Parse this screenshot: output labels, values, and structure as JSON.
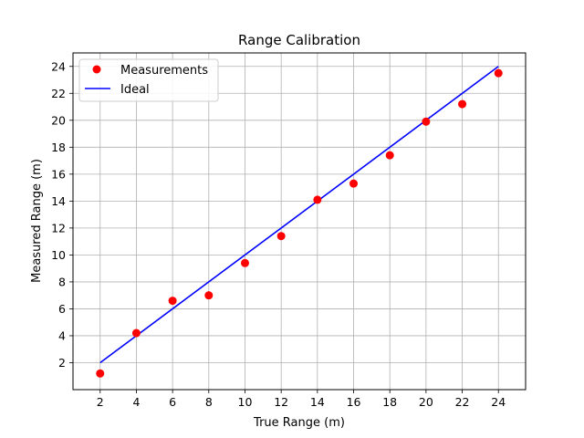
{
  "chart_data": {
    "type": "scatter",
    "title": "Range Calibration",
    "xlabel": "True Range (m)",
    "ylabel": "Measured Range (m)",
    "xlim": [
      0.5,
      25.5
    ],
    "ylim": [
      0.0,
      25.0
    ],
    "xticks": [
      2,
      4,
      6,
      8,
      10,
      12,
      14,
      16,
      18,
      20,
      22,
      24
    ],
    "yticks": [
      2,
      4,
      6,
      8,
      10,
      12,
      14,
      16,
      18,
      20,
      22,
      24
    ],
    "grid": true,
    "legend_position": "top-left",
    "series": [
      {
        "name": "Measurements",
        "kind": "scatter",
        "color": "#ff0000",
        "x": [
          2,
          4,
          6,
          8,
          10,
          12,
          14,
          16,
          18,
          20,
          22,
          24
        ],
        "y": [
          1.2,
          4.2,
          6.6,
          7.0,
          9.4,
          11.4,
          14.1,
          15.3,
          17.4,
          19.9,
          21.2,
          23.5
        ]
      },
      {
        "name": "Ideal",
        "kind": "line",
        "color": "#0000ff",
        "x": [
          2,
          24
        ],
        "y": [
          2,
          24
        ]
      }
    ]
  }
}
